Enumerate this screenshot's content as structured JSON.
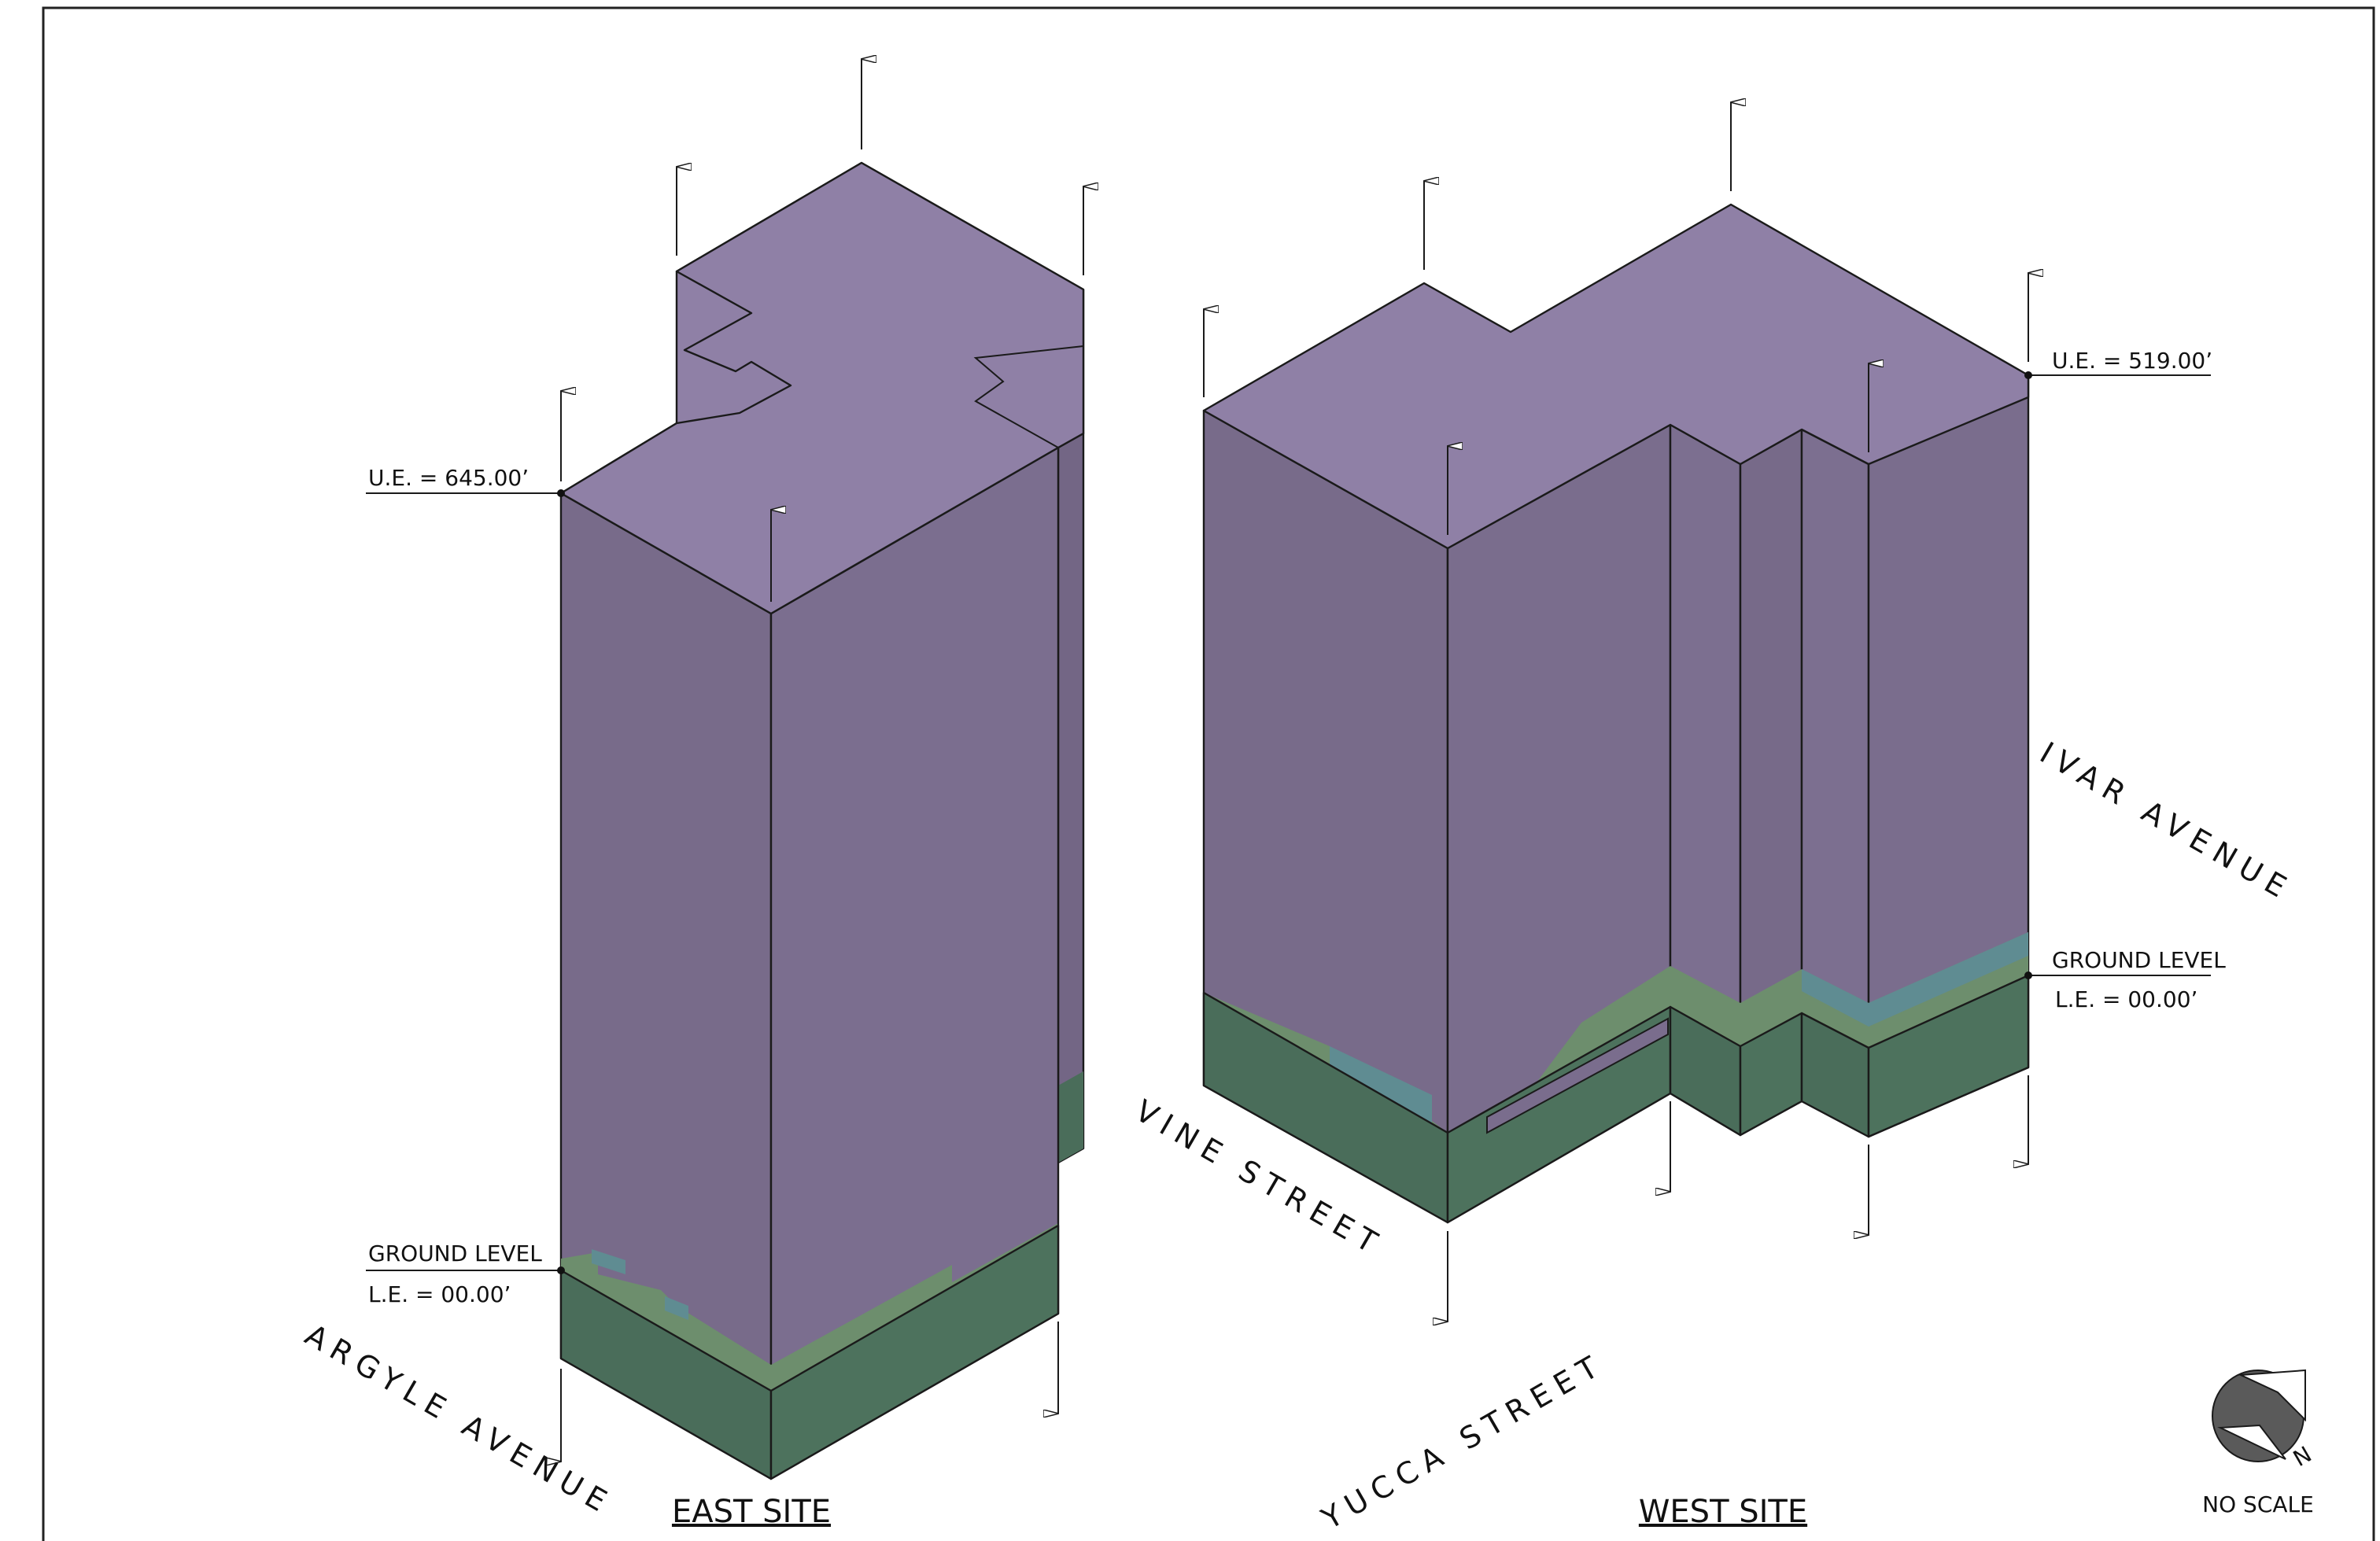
{
  "east_site": {
    "title": "EAST SITE",
    "upper_elevation": "U.E. = 645.00’",
    "ground_level": "GROUND LEVEL",
    "lower_elevation": "L.E. = 00.00’"
  },
  "west_site": {
    "title": "WEST SITE",
    "upper_elevation": "U.E. = 519.00’",
    "ground_level": "GROUND LEVEL",
    "lower_elevation": "L.E. = 00.00’"
  },
  "streets": {
    "argyle": "ARGYLE AVENUE",
    "vine": "VINE STREET",
    "yucca": "YUCCA STREET",
    "ivar": "IVAR AVENUE"
  },
  "north_arrow": {
    "letter": "N"
  },
  "scale_note": "NO SCALE",
  "colors": {
    "roof": "#8f80a6",
    "wall_dark": "#766988",
    "wall": "#7a6d8d",
    "below_grade": "#4a6d5a",
    "below_grade_light": "#557b63",
    "ground_band": "#6c8d6c",
    "teal_accent": "#5f8c92"
  }
}
